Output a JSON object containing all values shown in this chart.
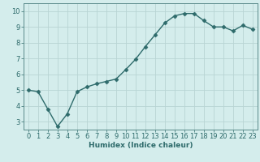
{
  "x": [
    0,
    1,
    2,
    3,
    4,
    5,
    6,
    7,
    8,
    9,
    10,
    11,
    12,
    13,
    14,
    15,
    16,
    17,
    18,
    19,
    20,
    21,
    22,
    23
  ],
  "y": [
    5.0,
    4.9,
    3.8,
    2.7,
    3.5,
    4.9,
    5.2,
    5.4,
    5.55,
    5.7,
    6.3,
    6.95,
    7.75,
    8.5,
    9.25,
    9.7,
    9.85,
    9.85,
    9.4,
    9.0,
    9.0,
    8.75,
    9.1,
    8.85
  ],
  "line_color": "#2e6b6b",
  "marker": "D",
  "marker_size": 2.5,
  "line_width": 1.0,
  "bg_color": "#d4edec",
  "grid_color": "#b8d4d4",
  "xlabel": "Humidex (Indice chaleur)",
  "xlim": [
    -0.5,
    23.5
  ],
  "ylim": [
    2.5,
    10.5
  ],
  "yticks": [
    3,
    4,
    5,
    6,
    7,
    8,
    9,
    10
  ],
  "xticks": [
    0,
    1,
    2,
    3,
    4,
    5,
    6,
    7,
    8,
    9,
    10,
    11,
    12,
    13,
    14,
    15,
    16,
    17,
    18,
    19,
    20,
    21,
    22,
    23
  ],
  "xlabel_fontsize": 6.5,
  "tick_fontsize": 6.0,
  "spine_color": "#5a8a8a"
}
